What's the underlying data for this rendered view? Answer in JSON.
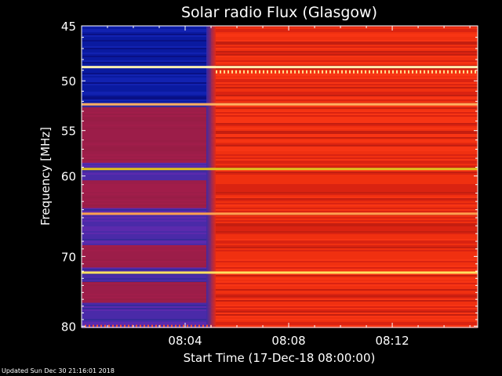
{
  "chart_data": {
    "type": "heatmap",
    "title": "Solar radio Flux (Glasgow)",
    "xlabel": "Start Time (17-Dec-18 08:00:00)",
    "ylabel": "Frequency [MHz]",
    "xlim_minutes": [
      0,
      15.3
    ],
    "ylim_mhz": [
      45,
      80.2
    ],
    "y_scale": "log",
    "y_inverted": true,
    "y_ticks": [
      {
        "value": 45,
        "label": "45"
      },
      {
        "value": 50,
        "label": "50"
      },
      {
        "value": 55,
        "label": "55"
      },
      {
        "value": 60,
        "label": "60"
      },
      {
        "value": 70,
        "label": "70"
      },
      {
        "value": 80,
        "label": "80"
      }
    ],
    "x_ticks": [
      {
        "value": 4,
        "label": "08:04"
      },
      {
        "value": 8,
        "label": "08:08"
      },
      {
        "value": 12,
        "label": "08:12"
      }
    ],
    "regions": {
      "before_transition_minutes": [
        0,
        5.0
      ],
      "before_color_low_band": "#0a1aa0",
      "before_color_high_band": "#4a2aa8",
      "after_color": "#f03010"
    },
    "bright_lines_mhz": [
      {
        "freq": 48.7,
        "color": "#fff0b0"
      },
      {
        "freq": 52.3,
        "color": "#ffb060"
      },
      {
        "freq": 59.2,
        "color": "#e0c020"
      },
      {
        "freq": 64.5,
        "color": "#ffa050"
      },
      {
        "freq": 72.2,
        "color": "#ffe060"
      }
    ]
  },
  "footer": "Updated Sun Dec 30 21:16:01 2018"
}
